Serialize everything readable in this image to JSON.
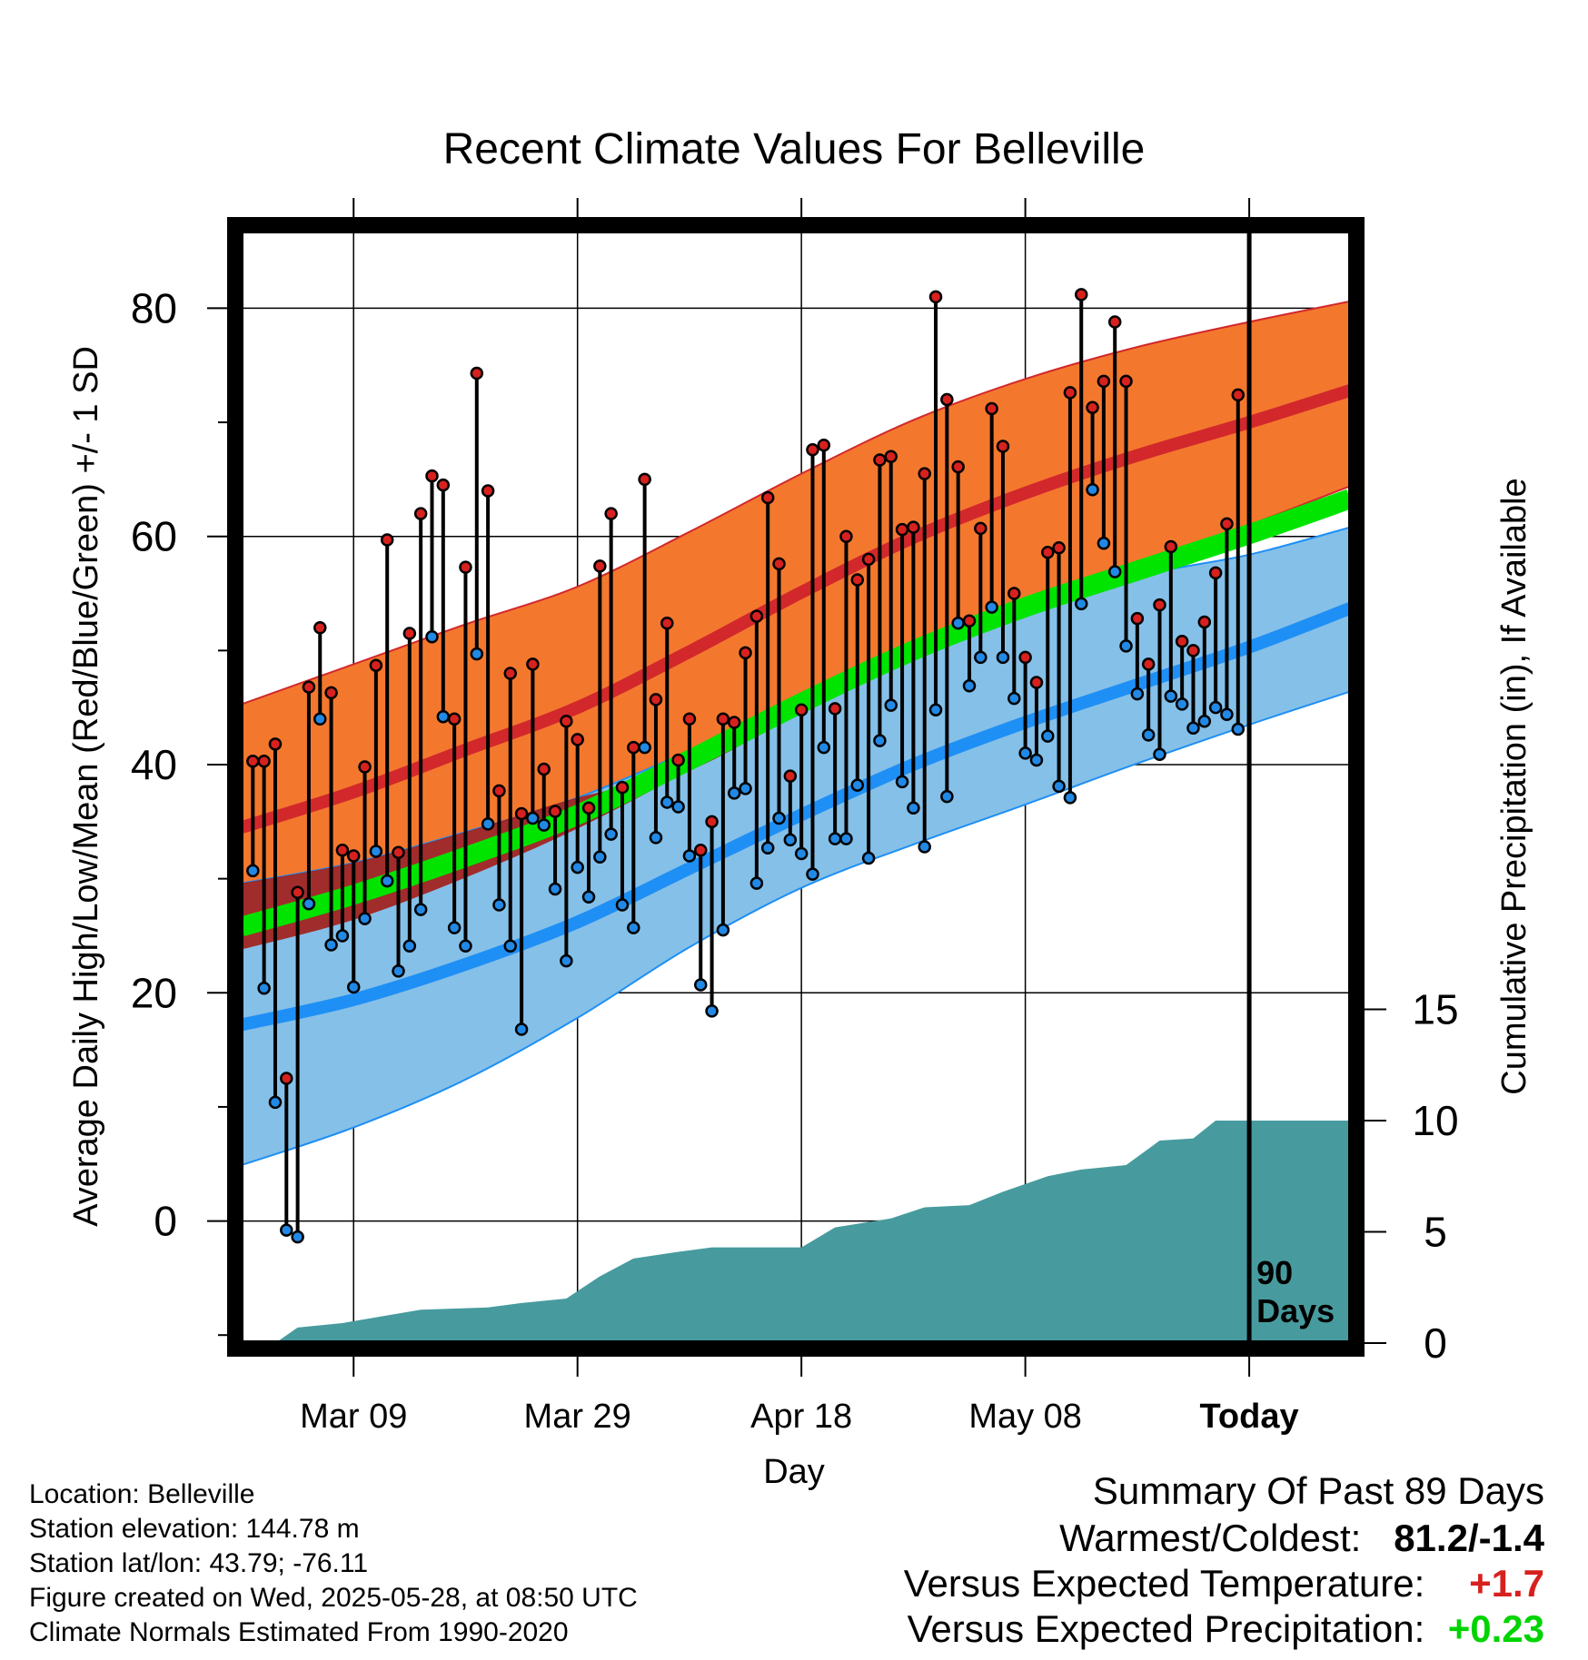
{
  "chart_data": {
    "type": "line",
    "title": "Recent Climate Values For Belleville",
    "xlabel": "Day",
    "ylabel": "Average Daily High/Low/Mean (Red/Blue/Green) +/- 1 SD",
    "y2label": "Cumulative Precipitation (in), If Available",
    "x_ticks": [
      "Mar 09",
      "Mar 29",
      "Apr 18",
      "May 08",
      "Today"
    ],
    "x_tick_days": [
      "2025-03-09",
      "2025-03-29",
      "2025-04-18",
      "2025-05-08",
      "2025-05-28"
    ],
    "x_range": [
      "2025-02-27",
      "2025-06-06"
    ],
    "y_ticks": [
      0,
      20,
      40,
      60,
      80
    ],
    "ylim": [
      -10.7,
      86.8
    ],
    "y2_ticks": [
      0,
      5,
      10,
      15
    ],
    "y2lim": [
      0,
      50
    ],
    "grid": true,
    "today_label": "90\nDays",
    "colors": {
      "high_band": "#f3782e",
      "high_mean": "#d2282c",
      "low_band": "#85c0e8",
      "low_mean": "#1e8ff5",
      "mean_band": "#00e400",
      "overlap": "#a31c16",
      "precip": "#479b9e",
      "high_dot": "#d7211f",
      "low_dot": "#2189e5"
    },
    "normals": {
      "days": [
        "2025-02-27",
        "2025-03-09",
        "2025-03-19",
        "2025-03-29",
        "2025-04-08",
        "2025-04-18",
        "2025-04-28",
        "2025-05-08",
        "2025-05-18",
        "2025-05-28",
        "2025-06-06"
      ],
      "high_mean": [
        34.5,
        37.6,
        41.3,
        45.0,
        49.9,
        55.1,
        59.9,
        63.8,
        67.1,
        70.0,
        72.8
      ],
      "high_sd_upper": [
        45.3,
        48.8,
        52.3,
        55.6,
        60.4,
        65.5,
        70.2,
        73.8,
        76.6,
        78.8,
        80.6
      ],
      "high_sd_lower": [
        23.8,
        26.4,
        30.1,
        34.4,
        39.5,
        44.7,
        49.5,
        53.8,
        57.4,
        61.0,
        64.4
      ],
      "low_mean": [
        17.2,
        19.4,
        22.5,
        26.2,
        30.9,
        35.6,
        40.0,
        43.7,
        47.0,
        50.3,
        53.7
      ],
      "low_sd_upper": [
        29.6,
        31.4,
        34.1,
        37.1,
        41.2,
        45.4,
        49.5,
        53.3,
        56.5,
        58.4,
        60.8
      ],
      "low_sd_lower": [
        4.9,
        8.2,
        12.4,
        17.8,
        24.0,
        29.2,
        33.0,
        36.5,
        40.1,
        43.5,
        46.4
      ],
      "mean_mean": [
        25.8,
        28.6,
        31.9,
        35.6,
        40.4,
        45.4,
        50.0,
        53.8,
        57.0,
        60.2,
        63.3
      ]
    },
    "series": [
      {
        "name": "High",
        "values": [
          40.3,
          40.3,
          41.8,
          12.5,
          28.8,
          46.8,
          52.0,
          46.3,
          32.5,
          32.0,
          39.8,
          48.7,
          59.7,
          32.3,
          51.5,
          62.0,
          65.3,
          64.5,
          44.0,
          57.3,
          74.3,
          64.0,
          37.7,
          48.0,
          35.7,
          48.8,
          39.6,
          35.9,
          43.8,
          42.2,
          36.2,
          57.4,
          62.0,
          38.0,
          41.5,
          65.0,
          45.7,
          52.4,
          40.4,
          44.0,
          32.5,
          35.0,
          44.0,
          43.7,
          49.8,
          53.0,
          63.4,
          57.6,
          39.0,
          44.8,
          67.6,
          68.0,
          44.9,
          60.0,
          56.2,
          58.0,
          66.7,
          67.0,
          60.6,
          60.8,
          65.5,
          81.0,
          72.0,
          66.1,
          52.6,
          60.7,
          71.2,
          67.9,
          55.0,
          49.4,
          47.2,
          58.6,
          59.0,
          72.6,
          81.2,
          71.3,
          73.6,
          78.8,
          73.6,
          52.8,
          48.8,
          54.0,
          59.1,
          50.8,
          50.0,
          52.5,
          56.8,
          61.1,
          72.4
        ]
      },
      {
        "name": "Low",
        "values": [
          30.7,
          20.4,
          10.4,
          -0.8,
          -1.4,
          27.8,
          44.0,
          24.2,
          25.0,
          20.5,
          26.5,
          32.4,
          29.8,
          21.9,
          24.1,
          27.3,
          51.2,
          44.2,
          25.7,
          24.1,
          49.7,
          34.8,
          27.7,
          24.1,
          16.8,
          35.3,
          34.7,
          29.1,
          22.8,
          31.0,
          28.4,
          31.9,
          33.9,
          27.7,
          25.7,
          41.5,
          33.6,
          36.7,
          36.3,
          32.0,
          20.7,
          18.4,
          25.5,
          37.5,
          37.9,
          29.6,
          32.7,
          35.3,
          33.4,
          32.2,
          30.4,
          41.5,
          33.5,
          33.5,
          38.2,
          31.8,
          42.1,
          45.2,
          38.5,
          36.2,
          32.8,
          44.8,
          37.2,
          52.4,
          46.9,
          49.4,
          53.8,
          49.4,
          45.8,
          41.0,
          40.4,
          42.5,
          38.1,
          37.1,
          54.1,
          64.1,
          59.4,
          56.9,
          50.4,
          46.2,
          42.6,
          40.9,
          46.0,
          45.3,
          43.2,
          43.8,
          45.0,
          44.4,
          43.1
        ]
      },
      {
        "name": "Cumulative Precipitation",
        "days": [
          "2025-03-02",
          "2025-03-04",
          "2025-03-08",
          "2025-03-15",
          "2025-03-21",
          "2025-03-24",
          "2025-03-28",
          "2025-03-31",
          "2025-04-03",
          "2025-04-07",
          "2025-04-10",
          "2025-04-18",
          "2025-04-21",
          "2025-04-26",
          "2025-04-29",
          "2025-05-03",
          "2025-05-06",
          "2025-05-10",
          "2025-05-13",
          "2025-05-17",
          "2025-05-20",
          "2025-05-23",
          "2025-05-25",
          "2025-06-06"
        ],
        "values": [
          0.0,
          0.7,
          0.9,
          1.5,
          1.6,
          1.8,
          2.0,
          3.0,
          3.8,
          4.1,
          4.3,
          4.3,
          5.2,
          5.6,
          6.1,
          6.2,
          6.8,
          7.5,
          7.8,
          8.0,
          9.1,
          9.2,
          10.0,
          10.0
        ]
      }
    ]
  },
  "meta": {
    "location": "Location: Belleville",
    "elevation": "Station elevation: 144.78 m",
    "latlon": "Station lat/lon: 43.79; -76.11",
    "created": "Figure created on Wed, 2025-05-28, at 08:50 UTC",
    "normals": "Climate Normals Estimated From 1990-2020"
  },
  "summary": {
    "title": "Summary Of Past 89 Days",
    "warmest_coldest_label": "Warmest/Coldest:",
    "warmest_coldest_value": "81.2/-1.4",
    "temp_label": "Versus Expected Temperature:",
    "temp_value": "+1.7",
    "temp_color": "#d7211f",
    "precip_label": "Versus Expected Precipitation:",
    "precip_value": "+0.23",
    "precip_color": "#00d400"
  }
}
